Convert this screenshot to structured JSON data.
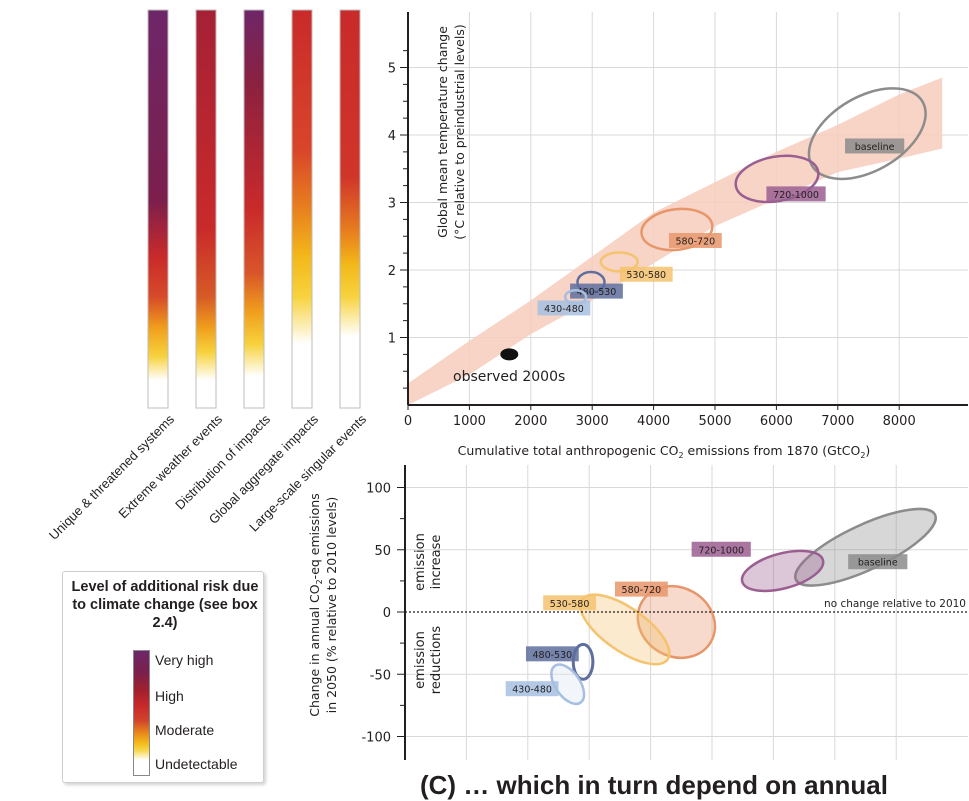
{
  "risk_panel": {
    "columns": [
      {
        "label": "Unique & threatened systems"
      },
      {
        "label": "Extreme weather events"
      },
      {
        "label": "Distribution of impacts"
      },
      {
        "label": "Global aggregate impacts"
      },
      {
        "label": "Large-scale singular events"
      }
    ],
    "legend": {
      "title": "Level of additional risk due to climate change (see box 2.4)",
      "levels": [
        "Very high",
        "High",
        "Moderate",
        "Undetectable"
      ]
    }
  },
  "colors": {
    "very_high": "#6e2669",
    "high": "#c92a2a",
    "moderate": "#f3b81a",
    "undetectable": "#ffffff",
    "plume": "#f7cdbc",
    "baseline": "#8c8c8c",
    "720-1000": "#9b5e91",
    "580-720": "#e7966b",
    "530-580": "#f4c36f",
    "480-530": "#5e6e9e",
    "430-480": "#a6bfe0"
  },
  "chart_data": [
    {
      "type": "scatter",
      "xlabel_pre": "Cumulative total anthropogenic CO",
      "xlabel_sub": "2",
      "xlabel_post": " emissions from 1870 (GtCO",
      "xlabel_sub2": "2",
      "xlabel_end": ")",
      "ylabel_line1": "Global mean temperature change",
      "ylabel_line2": "(°C relative to preindustrial levels)",
      "xlim": [
        0,
        9300
      ],
      "ylim": [
        0,
        5.5
      ],
      "xticks": [
        0,
        1000,
        2000,
        3000,
        4000,
        5000,
        6000,
        7000,
        8000
      ],
      "yticks": [
        1,
        2,
        3,
        4,
        5
      ],
      "grid": true,
      "observed": {
        "label": "observed 2000s",
        "x": 1650,
        "y": 0.75
      },
      "plume": [
        [
          0,
          0.0
        ],
        [
          1000,
          0.45
        ],
        [
          2000,
          1.05
        ],
        [
          3000,
          1.55
        ],
        [
          4000,
          2.1
        ],
        [
          5000,
          2.65
        ],
        [
          6000,
          3.05
        ],
        [
          7000,
          3.45
        ],
        [
          8000,
          3.65
        ],
        [
          8700,
          3.8
        ],
        [
          8700,
          4.85
        ],
        [
          8000,
          4.6
        ],
        [
          7000,
          4.15
        ],
        [
          6000,
          3.75
        ],
        [
          5000,
          3.3
        ],
        [
          4000,
          2.85
        ],
        [
          3000,
          2.2
        ],
        [
          2000,
          1.55
        ],
        [
          1000,
          0.95
        ],
        [
          0,
          0.32
        ]
      ],
      "series": [
        {
          "name": "baseline",
          "cx": 7480,
          "cy": 4.02,
          "rx": 1040,
          "ry": 0.55,
          "rot": -30,
          "label_x": 7600,
          "label_y": 3.83
        },
        {
          "name": "720-1000",
          "cx": 6010,
          "cy": 3.35,
          "rx": 680,
          "ry": 0.33,
          "rot": -10,
          "label_x": 6320,
          "label_y": 3.12
        },
        {
          "name": "580-720",
          "cx": 4380,
          "cy": 2.6,
          "rx": 580,
          "ry": 0.3,
          "rot": -7,
          "label_x": 4680,
          "label_y": 2.43
        },
        {
          "name": "530-580",
          "cx": 3440,
          "cy": 2.12,
          "rx": 300,
          "ry": 0.14,
          "rot": 0,
          "label_x": 3880,
          "label_y": 1.93
        },
        {
          "name": "480-530",
          "cx": 2980,
          "cy": 1.82,
          "rx": 220,
          "ry": 0.15,
          "rot": 0,
          "label_x": 3070,
          "label_y": 1.68
        },
        {
          "name": "430-480",
          "cx": 2730,
          "cy": 1.6,
          "rx": 170,
          "ry": 0.1,
          "rot": 0,
          "label_x": 2540,
          "label_y": 1.43
        }
      ]
    },
    {
      "type": "scatter",
      "ylabel_line1_pre": "Change in annual CO",
      "ylabel_line1_sub": "2",
      "ylabel_line1_post": "-eq emissions",
      "ylabel_line2": "in 2050 (% relative to 2010 levels)",
      "xlim": [
        0,
        9300
      ],
      "ylim": [
        -110,
        115
      ],
      "xticks": [
        0,
        1000,
        2000,
        3000,
        4000,
        5000,
        6000,
        7000,
        8000
      ],
      "yticks": [
        -100,
        -50,
        0,
        50,
        100
      ],
      "grid": true,
      "annotations": {
        "no_change": "no change relative to 2010",
        "increase_1": "emission",
        "increase_2": "increase",
        "reduction_1": "emission",
        "reduction_2": "reductions"
      },
      "series": [
        {
          "name": "baseline",
          "cx": 7500,
          "cy": 52,
          "rx": 1250,
          "ry": 18,
          "rot": -25,
          "label_x": 7700,
          "label_y": 40
        },
        {
          "name": "720-1000",
          "cx": 6150,
          "cy": 33,
          "rx": 680,
          "ry": 14,
          "rot": -15,
          "label_x": 5150,
          "label_y": 50
        },
        {
          "name": "580-720",
          "cx": 4420,
          "cy": -8,
          "rx": 560,
          "ry": 32,
          "rot": -60,
          "label_x": 3850,
          "label_y": 18
        },
        {
          "name": "530-580",
          "cx": 3580,
          "cy": -14,
          "rx": 350,
          "ry": 42,
          "rot": -55,
          "label_x": 2680,
          "label_y": 7
        },
        {
          "name": "480-530",
          "cx": 2900,
          "cy": -40,
          "rx": 160,
          "ry": 14,
          "rot": 0,
          "label_x": 2400,
          "label_y": -34
        },
        {
          "name": "430-480",
          "cx": 2650,
          "cy": -58,
          "rx": 200,
          "ry": 18,
          "rot": -35,
          "label_x": 2070,
          "label_y": -62
        }
      ]
    }
  ],
  "bottom_text": "(C) … which in turn depend on annual"
}
